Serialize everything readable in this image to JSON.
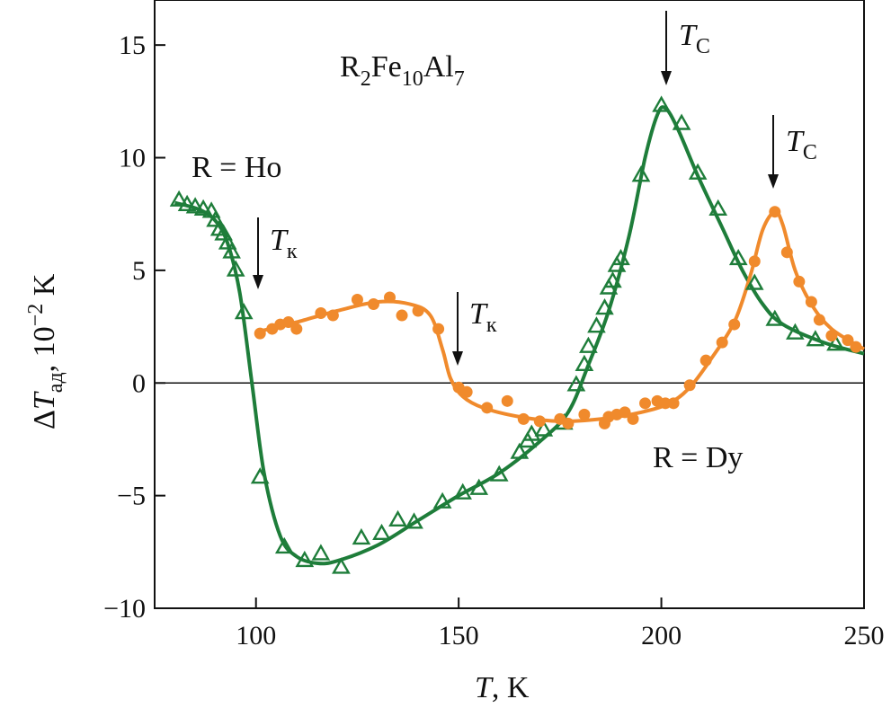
{
  "chart_data": {
    "type": "scatter",
    "title": "R2Fe10Al7",
    "xlabel": "T, K",
    "ylabel": "ΔTад, 10−2 K",
    "xlim": [
      75,
      250
    ],
    "ylim": [
      -10,
      17
    ],
    "x_ticks": [
      100,
      150,
      200,
      250
    ],
    "y_ticks": [
      -10,
      -5,
      0,
      5,
      10,
      15
    ],
    "x_tick_labels": [
      "100",
      "150",
      "200",
      "250"
    ],
    "y_tick_labels": [
      "−10",
      "−5",
      "0",
      "5",
      "10",
      "15"
    ],
    "grid": false,
    "series": [
      {
        "name": "R = Ho",
        "label_text": "R = Ho",
        "color": "#1e7d3a",
        "marker": "triangle-open",
        "points": [
          [
            81,
            8.1
          ],
          [
            83,
            7.9
          ],
          [
            85,
            7.8
          ],
          [
            87,
            7.7
          ],
          [
            89,
            7.6
          ],
          [
            90,
            7.2
          ],
          [
            91,
            6.8
          ],
          [
            92,
            6.6
          ],
          [
            93,
            6.2
          ],
          [
            94,
            5.8
          ],
          [
            95,
            5.0
          ],
          [
            97,
            3.1
          ],
          [
            101,
            -4.2
          ],
          [
            107,
            -7.3
          ],
          [
            112,
            -7.9
          ],
          [
            116,
            -7.6
          ],
          [
            121,
            -8.2
          ],
          [
            126,
            -6.9
          ],
          [
            131,
            -6.7
          ],
          [
            135,
            -6.1
          ],
          [
            139,
            -6.2
          ],
          [
            146,
            -5.3
          ],
          [
            151,
            -4.9
          ],
          [
            155,
            -4.7
          ],
          [
            160,
            -4.1
          ],
          [
            165,
            -3.1
          ],
          [
            167,
            -2.6
          ],
          [
            168,
            -2.3
          ],
          [
            171,
            -2.1
          ],
          [
            176,
            -1.8
          ],
          [
            179,
            -0.1
          ],
          [
            181,
            0.8
          ],
          [
            182,
            1.6
          ],
          [
            184,
            2.5
          ],
          [
            186,
            3.3
          ],
          [
            187,
            4.2
          ],
          [
            188,
            4.5
          ],
          [
            189,
            5.2
          ],
          [
            190,
            5.5
          ],
          [
            195,
            9.2
          ],
          [
            200,
            12.3
          ],
          [
            205,
            11.5
          ],
          [
            209,
            9.3
          ],
          [
            214,
            7.7
          ],
          [
            219,
            5.5
          ],
          [
            223,
            4.4
          ],
          [
            228,
            2.8
          ],
          [
            233,
            2.2
          ],
          [
            238,
            1.9
          ],
          [
            243,
            1.7
          ]
        ],
        "curve": [
          [
            80,
            8.0
          ],
          [
            86,
            7.7
          ],
          [
            90,
            7.2
          ],
          [
            93,
            6.2
          ],
          [
            96,
            4.0
          ],
          [
            99,
            0.0
          ],
          [
            102,
            -4.0
          ],
          [
            106,
            -6.8
          ],
          [
            110,
            -7.7
          ],
          [
            115,
            -8.0
          ],
          [
            120,
            -7.9
          ],
          [
            130,
            -7.2
          ],
          [
            140,
            -6.1
          ],
          [
            150,
            -5.0
          ],
          [
            160,
            -4.0
          ],
          [
            170,
            -2.6
          ],
          [
            177,
            -1.3
          ],
          [
            182,
            0.8
          ],
          [
            187,
            3.2
          ],
          [
            192,
            6.5
          ],
          [
            196,
            10.0
          ],
          [
            199,
            11.9
          ],
          [
            201,
            12.2
          ],
          [
            204,
            11.3
          ],
          [
            209,
            9.2
          ],
          [
            215,
            6.9
          ],
          [
            220,
            5.0
          ],
          [
            225,
            3.5
          ],
          [
            230,
            2.6
          ],
          [
            240,
            1.8
          ],
          [
            250,
            1.3
          ]
        ]
      },
      {
        "name": "R = Dy",
        "label_text": "R = Dy",
        "color": "#f08a2c",
        "marker": "circle-filled",
        "points": [
          [
            101,
            2.2
          ],
          [
            104,
            2.4
          ],
          [
            106,
            2.6
          ],
          [
            108,
            2.7
          ],
          [
            110,
            2.4
          ],
          [
            116,
            3.1
          ],
          [
            119,
            3.0
          ],
          [
            125,
            3.7
          ],
          [
            129,
            3.5
          ],
          [
            133,
            3.8
          ],
          [
            136,
            3.0
          ],
          [
            140,
            3.2
          ],
          [
            145,
            2.4
          ],
          [
            150,
            -0.2
          ],
          [
            152,
            -0.4
          ],
          [
            157,
            -1.1
          ],
          [
            162,
            -0.8
          ],
          [
            166,
            -1.6
          ],
          [
            170,
            -1.7
          ],
          [
            175,
            -1.6
          ],
          [
            177,
            -1.8
          ],
          [
            181,
            -1.4
          ],
          [
            186,
            -1.8
          ],
          [
            187,
            -1.5
          ],
          [
            189,
            -1.4
          ],
          [
            191,
            -1.3
          ],
          [
            193,
            -1.6
          ],
          [
            196,
            -0.9
          ],
          [
            199,
            -0.8
          ],
          [
            201,
            -0.9
          ],
          [
            203,
            -0.9
          ],
          [
            207,
            -0.1
          ],
          [
            211,
            1.0
          ],
          [
            215,
            1.8
          ],
          [
            218,
            2.6
          ],
          [
            223,
            5.4
          ],
          [
            228,
            7.6
          ],
          [
            231,
            5.8
          ],
          [
            234,
            4.5
          ],
          [
            237,
            3.6
          ],
          [
            239,
            2.8
          ],
          [
            242,
            2.1
          ],
          [
            246,
            1.9
          ],
          [
            248,
            1.6
          ]
        ],
        "curve": [
          [
            101,
            2.3
          ],
          [
            110,
            2.7
          ],
          [
            120,
            3.2
          ],
          [
            130,
            3.6
          ],
          [
            138,
            3.5
          ],
          [
            143,
            3.0
          ],
          [
            146,
            1.5
          ],
          [
            148,
            0.2
          ],
          [
            151,
            -0.6
          ],
          [
            156,
            -1.1
          ],
          [
            165,
            -1.5
          ],
          [
            175,
            -1.7
          ],
          [
            185,
            -1.6
          ],
          [
            195,
            -1.3
          ],
          [
            202,
            -0.9
          ],
          [
            207,
            -0.2
          ],
          [
            212,
            1.0
          ],
          [
            218,
            2.7
          ],
          [
            222,
            4.8
          ],
          [
            225,
            6.8
          ],
          [
            228,
            7.6
          ],
          [
            230,
            7.0
          ],
          [
            233,
            5.0
          ],
          [
            237,
            3.5
          ],
          [
            242,
            2.4
          ],
          [
            250,
            1.5
          ]
        ]
      }
    ],
    "annotations": [
      {
        "id": "ho-tk",
        "symbol": "T",
        "subscript": "к",
        "x": 97
      },
      {
        "id": "dy-tk",
        "symbol": "T",
        "subscript": "к",
        "x": 150
      },
      {
        "id": "ho-tc",
        "symbol": "T",
        "subscript": "C",
        "x": 201
      },
      {
        "id": "dy-tc",
        "symbol": "T",
        "subscript": "C",
        "x": 228
      }
    ]
  },
  "title_parts": {
    "base": "R",
    "sub1": "2",
    "mid": "Fe",
    "sub2": "10",
    "end": "Al",
    "sub3": "7"
  },
  "ylabel_parts": {
    "delta": "Δ",
    "var": "T",
    "sub": "ад",
    "rest": ", 10",
    "sup": "−2",
    "unit": " K"
  },
  "xlabel_parts": {
    "var": "T",
    "rest": ", K"
  }
}
